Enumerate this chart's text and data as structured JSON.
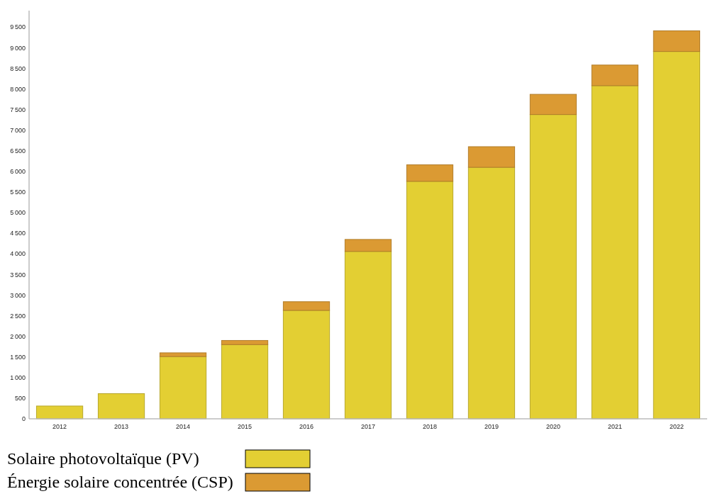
{
  "chart_data": {
    "type": "bar",
    "stacked": true,
    "categories": [
      "2012",
      "2013",
      "2014",
      "2015",
      "2016",
      "2017",
      "2018",
      "2019",
      "2020",
      "2021",
      "2022"
    ],
    "series": [
      {
        "name": "Solaire photovoltaïque (PV)",
        "color": "#e3cf33",
        "values": [
          310,
          610,
          1510,
          1800,
          2630,
          4060,
          5760,
          6100,
          7380,
          8080,
          8910
        ]
      },
      {
        "name": "Énergie solaire concentrée (CSP)",
        "color": "#db9a33",
        "values": [
          0,
          0,
          90,
          100,
          210,
          290,
          400,
          500,
          490,
          500,
          500
        ]
      }
    ],
    "ylim": [
      0,
      9900
    ],
    "yticks": [
      0,
      500,
      1000,
      1500,
      2000,
      2500,
      3000,
      3500,
      4000,
      4500,
      5000,
      5500,
      6000,
      6500,
      7000,
      7500,
      8000,
      8500,
      9000,
      9500
    ],
    "grid": false,
    "legend": "bottom left"
  }
}
